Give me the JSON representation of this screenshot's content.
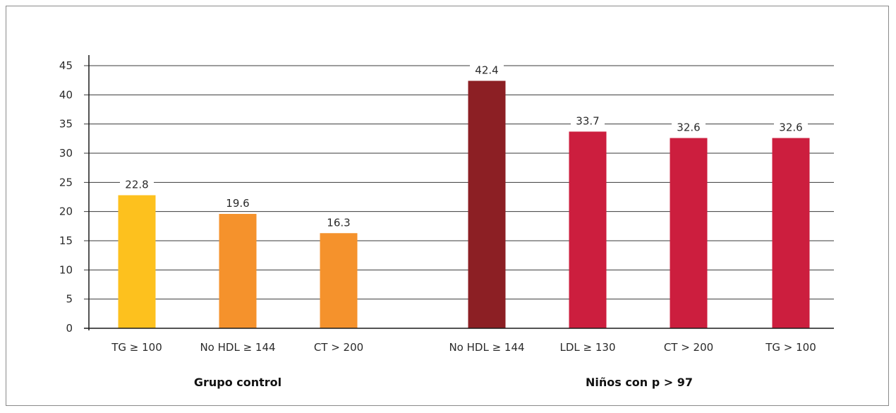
{
  "chart_data": {
    "type": "bar",
    "ylim": [
      0,
      45
    ],
    "yticks": [
      0,
      5,
      10,
      15,
      20,
      25,
      30,
      35,
      40,
      45
    ],
    "grid": true,
    "categories": [
      "TG ≥ 100",
      "No HDL ≥ 144",
      "CT > 200",
      "No HDL ≥ 144",
      "LDL ≥ 130",
      "CT > 200",
      "TG > 100"
    ],
    "values": [
      22.8,
      19.6,
      16.3,
      42.4,
      33.7,
      32.6,
      32.6
    ],
    "value_labels": [
      "22.8",
      "19.6",
      "16.3",
      "42.4",
      "33.7",
      "32.6",
      "32.6"
    ],
    "colors": [
      "#FDC11E",
      "#F5922C",
      "#F5922C",
      "#8C1F24",
      "#CC1E3E",
      "#CC1E3E",
      "#CC1E3E"
    ],
    "groups": [
      {
        "label": "Grupo control",
        "indices": [
          0,
          1,
          2
        ]
      },
      {
        "label": "Niños con p > 97",
        "indices": [
          3,
          4,
          5,
          6
        ]
      }
    ]
  }
}
